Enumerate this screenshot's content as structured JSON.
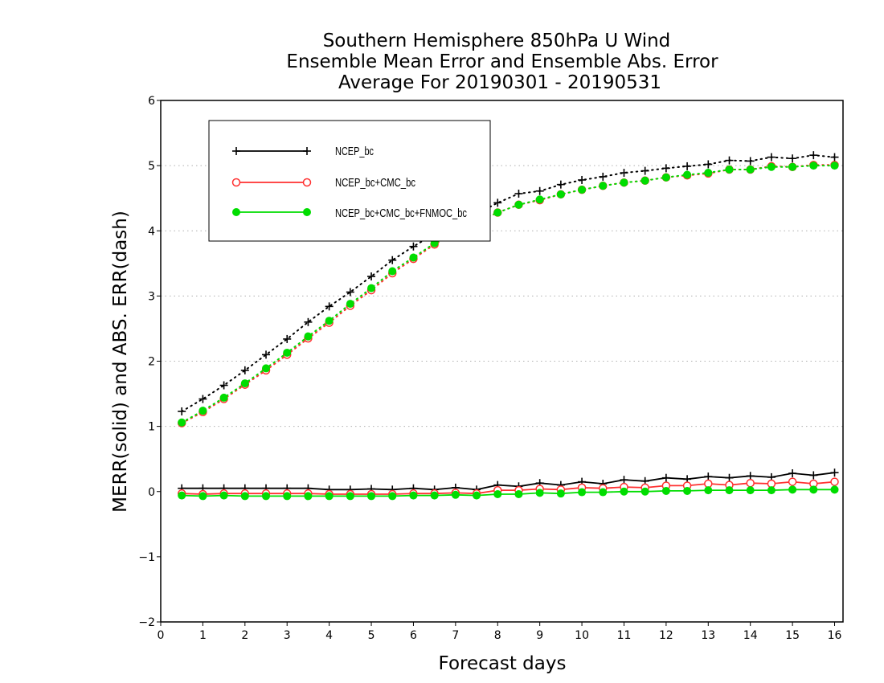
{
  "chart_data": {
    "type": "line",
    "title": [
      "Southern Hemisphere 850hPa U Wind",
      "Ensemble Mean Error and Ensemble Abs. Error",
      "Average For 20190301 - 20190531"
    ],
    "xlabel": "Forecast days",
    "ylabel": "MERR(solid) and ABS. ERR(dash)",
    "xlim": [
      0,
      16.2
    ],
    "ylim": [
      -2,
      6
    ],
    "xticks": [
      0,
      1,
      2,
      3,
      4,
      5,
      6,
      7,
      8,
      9,
      10,
      11,
      12,
      13,
      14,
      15,
      16
    ],
    "yticks": [
      -2,
      -1,
      0,
      1,
      2,
      3,
      4,
      5,
      6
    ],
    "grid": "horizontal dotted at y = 1..5",
    "legend_position": "top-left",
    "x": [
      0.5,
      1,
      1.5,
      2,
      2.5,
      3,
      3.5,
      4,
      4.5,
      5,
      5.5,
      6,
      6.5,
      7,
      7.5,
      8,
      8.5,
      9,
      9.5,
      10,
      10.5,
      11,
      11.5,
      12,
      12.5,
      13,
      13.5,
      14,
      14.5,
      15,
      15.5,
      16
    ],
    "series": [
      {
        "name": "NCEP_bc",
        "color": "#000000",
        "marker": "plus",
        "merr": [
          0.05,
          0.05,
          0.05,
          0.05,
          0.05,
          0.05,
          0.05,
          0.03,
          0.03,
          0.04,
          0.03,
          0.05,
          0.03,
          0.06,
          0.03,
          0.1,
          0.08,
          0.13,
          0.1,
          0.15,
          0.12,
          0.18,
          0.16,
          0.21,
          0.19,
          0.23,
          0.21,
          0.24,
          0.22,
          0.28,
          0.25,
          0.29
        ],
        "abs_err": [
          1.23,
          1.42,
          1.63,
          1.86,
          2.1,
          2.34,
          2.6,
          2.84,
          3.06,
          3.3,
          3.55,
          3.76,
          3.95,
          4.1,
          4.26,
          4.43,
          4.57,
          4.61,
          4.71,
          4.78,
          4.83,
          4.89,
          4.92,
          4.96,
          4.99,
          5.02,
          5.08,
          5.07,
          5.13,
          5.11,
          5.16,
          5.13
        ]
      },
      {
        "name": "NCEP_bc+CMC_bc",
        "color": "#ff3030",
        "marker": "open-circle",
        "merr": [
          -0.03,
          -0.04,
          -0.03,
          -0.03,
          -0.03,
          -0.03,
          -0.03,
          -0.04,
          -0.04,
          -0.04,
          -0.04,
          -0.03,
          -0.03,
          -0.02,
          -0.03,
          0.02,
          0.02,
          0.04,
          0.03,
          0.06,
          0.05,
          0.07,
          0.06,
          0.09,
          0.09,
          0.12,
          0.1,
          0.13,
          0.12,
          0.15,
          0.12,
          0.15
        ],
        "abs_err": [
          1.05,
          1.22,
          1.42,
          1.64,
          1.86,
          2.1,
          2.35,
          2.59,
          2.85,
          3.09,
          3.35,
          3.57,
          3.79,
          3.97,
          4.13,
          4.28,
          4.4,
          4.47,
          4.56,
          4.63,
          4.69,
          4.74,
          4.77,
          4.82,
          4.85,
          4.88,
          4.94,
          4.94,
          4.99,
          4.98,
          5.01,
          5.01
        ]
      },
      {
        "name": "NCEP_bc+CMC_bc+FNMOC_bc",
        "color": "#00dd00",
        "marker": "filled-circle",
        "merr": [
          -0.06,
          -0.07,
          -0.06,
          -0.07,
          -0.07,
          -0.07,
          -0.07,
          -0.07,
          -0.07,
          -0.07,
          -0.07,
          -0.06,
          -0.06,
          -0.05,
          -0.06,
          -0.04,
          -0.04,
          -0.02,
          -0.03,
          -0.01,
          -0.01,
          0.0,
          0.0,
          0.01,
          0.01,
          0.02,
          0.02,
          0.02,
          0.02,
          0.03,
          0.03,
          0.03
        ],
        "abs_err": [
          1.06,
          1.24,
          1.44,
          1.66,
          1.89,
          2.13,
          2.38,
          2.62,
          2.88,
          3.12,
          3.38,
          3.59,
          3.81,
          3.98,
          4.14,
          4.28,
          4.4,
          4.48,
          4.56,
          4.63,
          4.69,
          4.74,
          4.77,
          4.82,
          4.86,
          4.89,
          4.94,
          4.94,
          4.98,
          4.98,
          5.0,
          5.0
        ]
      }
    ]
  }
}
